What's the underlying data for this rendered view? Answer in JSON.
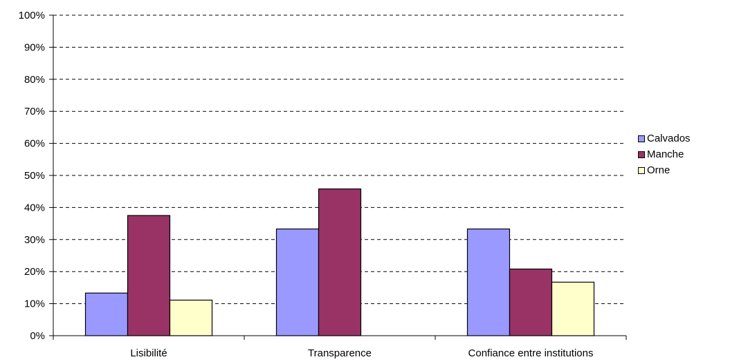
{
  "chart_data": {
    "type": "bar",
    "title": "",
    "xlabel": "",
    "ylabel": "",
    "categories": [
      "Lisibilité",
      "Transparence",
      "Confiance entre  institutions"
    ],
    "series": [
      {
        "name": "Calvados",
        "color": "#9999ff",
        "values": [
          13.3,
          33.3,
          33.3
        ]
      },
      {
        "name": "Manche",
        "color": "#993366",
        "values": [
          37.5,
          45.8,
          20.8
        ]
      },
      {
        "name": "Orne",
        "color": "#ffffcc",
        "values": [
          11.1,
          0,
          16.7
        ]
      }
    ],
    "ylim": [
      0,
      100
    ],
    "yticks": [
      "0%",
      "10%",
      "20%",
      "30%",
      "40%",
      "50%",
      "60%",
      "70%",
      "80%",
      "90%",
      "100%"
    ],
    "grid": true,
    "legend_position": "right"
  }
}
